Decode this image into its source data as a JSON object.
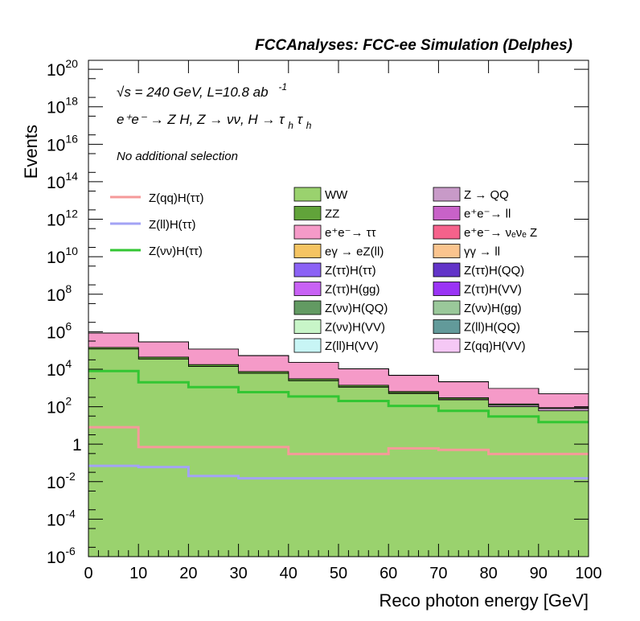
{
  "chart_data": {
    "type": "histogram-stacked",
    "title": "FCCAnalyses: FCC-ee Simulation (Delphes)",
    "xlabel": "Reco photon energy [GeV]",
    "ylabel": "Events",
    "xlim": [
      0,
      100
    ],
    "ylim": [
      1e-06,
      3e+20
    ],
    "log_y": true,
    "x_ticks": [
      "0",
      "10",
      "20",
      "30",
      "40",
      "50",
      "60",
      "70",
      "80",
      "90",
      "100"
    ],
    "y_ticks": [
      {
        "base": "10",
        "exp": "-6",
        "value": 1e-06
      },
      {
        "base": "10",
        "exp": "-4",
        "value": 0.0001
      },
      {
        "base": "10",
        "exp": "-2",
        "value": 0.01
      },
      {
        "base": "1",
        "exp": "",
        "value": 1
      },
      {
        "base": "10",
        "exp": "2",
        "value": 100.0
      },
      {
        "base": "10",
        "exp": "4",
        "value": 10000.0
      },
      {
        "base": "10",
        "exp": "6",
        "value": 1000000.0
      },
      {
        "base": "10",
        "exp": "8",
        "value": 100000000.0
      },
      {
        "base": "10",
        "exp": "10",
        "value": 10000000000.0
      },
      {
        "base": "10",
        "exp": "12",
        "value": 1000000000000.0
      },
      {
        "base": "10",
        "exp": "14",
        "value": 100000000000000.0
      },
      {
        "base": "10",
        "exp": "16",
        "value": 1e+16
      },
      {
        "base": "10",
        "exp": "18",
        "value": 1e+18
      },
      {
        "base": "10",
        "exp": "20",
        "value": 1e+20
      }
    ],
    "annotations": {
      "energy": "√s = 240 GeV, L=10.8 ab",
      "energy_exp": "-1",
      "process": "e⁺e⁻ → Z H, Z → νν, H → τ",
      "process_sub1": "h",
      "process_tau": "τ",
      "process_sub2": "h",
      "selection": "No additional selection"
    },
    "signal_series": [
      {
        "name": "Z(qq)H(ττ)",
        "color": "#f59a9a",
        "values": [
          8,
          0.7,
          0.7,
          0.7,
          0.3,
          0.3,
          0.6,
          0.5,
          0.3,
          0.3
        ]
      },
      {
        "name": "Z(ll)H(ττ)",
        "color": "#a3a3f5",
        "values": [
          0.07,
          0.06,
          0.02,
          0.015,
          0.015,
          0.015,
          0.015,
          0.015,
          0.015,
          0.015
        ]
      },
      {
        "name": "Z(νν)H(ττ)",
        "color": "#33c633",
        "values": [
          8000,
          2000,
          1100,
          600,
          350,
          200,
          110,
          60,
          30,
          15
        ]
      }
    ],
    "stack_series": [
      {
        "name": "WW",
        "color": "#9ad26e",
        "values": [
          120000,
          35000,
          14000,
          6000,
          2400,
          1100,
          500,
          230,
          100,
          60
        ]
      },
      {
        "name": "Z → QQ",
        "color": "#c89ac8",
        "values": [
          300,
          150,
          100,
          70,
          60,
          40,
          30,
          25,
          20,
          20
        ]
      },
      {
        "name": "ZZ",
        "color": "#61a33a",
        "values": [
          25000,
          9000,
          3500,
          1400,
          600,
          260,
          110,
          45,
          18,
          8
        ]
      },
      {
        "name": "e⁺e⁻→ ll",
        "color": "#c862c8",
        "values": [
          3,
          1.5,
          1,
          0.8,
          0.6,
          0.4,
          0.4,
          0.6,
          0.8,
          1
        ]
      },
      {
        "name": "e⁺e⁻→ ττ",
        "color": "#f59ac8",
        "values": [
          700000,
          240000,
          100000,
          45000,
          20000,
          9000,
          4000,
          1800,
          800,
          400
        ]
      },
      {
        "name": "e⁺e⁻→ νₑνₑ Z",
        "color": "#f5628b",
        "values": [
          400,
          60,
          25,
          12,
          6,
          3,
          2,
          1.5,
          1,
          0.8
        ]
      },
      {
        "name": "eγ → eZ(ll)",
        "color": "#f5c462",
        "values": [
          1,
          0.4,
          0.5,
          0.8,
          0.3,
          0.1,
          0.1,
          0.05,
          0.05,
          0.02
        ]
      },
      {
        "name": "γγ → ll",
        "color": "#fac48e",
        "values": [
          1,
          0.5,
          0.4,
          0.4,
          0.2,
          0.1,
          0.06,
          0.03,
          0.01,
          0.005
        ]
      },
      {
        "name": "Z(ττ)H(ττ)",
        "color": "#8b62f5",
        "values": [
          6,
          1.2,
          0.5,
          0.3,
          0.2,
          0.1,
          0.08,
          0.05,
          0.02,
          0.01
        ]
      },
      {
        "name": "Z(ττ)H(QQ)",
        "color": "#6234c8",
        "values": [
          4,
          0.6,
          0.25,
          0.15,
          0.07,
          0.04,
          0.02,
          0.01,
          0.005,
          0.003
        ]
      },
      {
        "name": "Z(ττ)H(gg)",
        "color": "#c862f5",
        "values": [
          2,
          0.3,
          0.2,
          0.1,
          0.05,
          0.02,
          0.01,
          0.005,
          0.002,
          0.001
        ]
      },
      {
        "name": "Z(ττ)H(VV)",
        "color": "#9a34f5",
        "values": [
          1,
          0.2,
          0.1,
          0.05,
          0.02,
          0.01,
          0.005,
          0.002,
          0.001,
          0.0005
        ]
      },
      {
        "name": "Z(νν)H(QQ)",
        "color": "#629a62",
        "values": [
          3,
          0.5,
          0.3,
          0.1,
          0.05,
          0.02,
          0.01,
          0.005,
          0.002,
          0.001
        ]
      },
      {
        "name": "Z(νν)H(gg)",
        "color": "#9ac89a",
        "values": [
          2,
          0.3,
          0.15,
          0.06,
          0.03,
          0.01,
          0.005,
          0.002,
          0.001,
          0.0005
        ]
      },
      {
        "name": "Z(νν)H(VV)",
        "color": "#c8f5c8",
        "values": [
          1,
          0.2,
          0.1,
          0.04,
          0.02,
          0.01,
          0.005,
          0.002,
          0.001,
          0.0005
        ]
      },
      {
        "name": "Z(ll)H(QQ)",
        "color": "#629a9a",
        "values": [
          0.1,
          0.01,
          0.005,
          0.002,
          0.001,
          0.0005,
          0.0002,
          0.0001,
          5e-05,
          2e-05
        ]
      },
      {
        "name": "Z(ll)H(VV)",
        "color": "#c8f5f5",
        "values": [
          0.05,
          0.008,
          0.003,
          0.001,
          0.0005,
          0.0002,
          0.0001,
          5e-05,
          2e-05,
          1e-05
        ]
      },
      {
        "name": "Z(qq)H(VV)",
        "color": "#f5c8f5",
        "values": [
          0.3,
          0.1,
          0.08,
          0.05,
          0.04,
          0.02,
          0.01,
          0.005,
          0.002,
          0.001
        ]
      }
    ],
    "x_bins": [
      5,
      15,
      25,
      35,
      45,
      55,
      65,
      75,
      85,
      95
    ],
    "legend_position": "top-center"
  }
}
